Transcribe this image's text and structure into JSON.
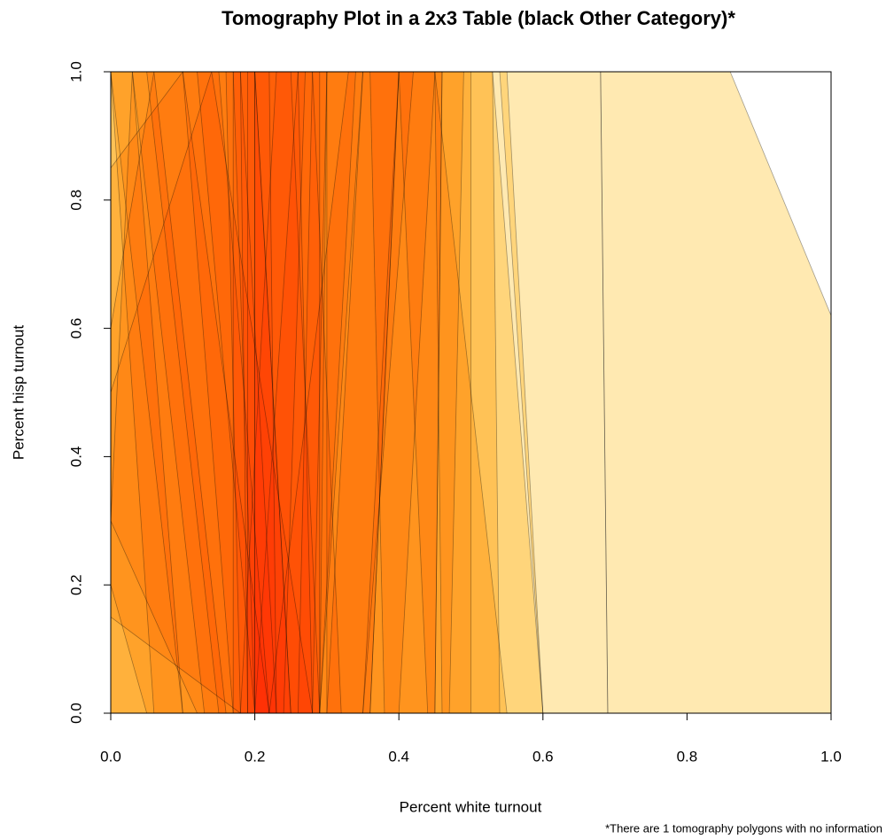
{
  "chart_data": {
    "type": "tomography",
    "title": "Tomography Plot in a 2x3 Table (black Other Category)*",
    "xlabel": "Percent white turnout",
    "ylabel": "Percent hisp turnout",
    "note": "*There are 1 tomography polygons with no information",
    "xlim": [
      0,
      1
    ],
    "ylim": [
      0,
      1
    ],
    "xticks": [
      {
        "value": 0,
        "label": "0.0"
      },
      {
        "value": 0.2,
        "label": "0.2"
      },
      {
        "value": 0.4,
        "label": "0.4"
      },
      {
        "value": 0.6,
        "label": "0.6"
      },
      {
        "value": 0.8,
        "label": "0.8"
      },
      {
        "value": 1,
        "label": "1.0"
      }
    ],
    "yticks": [
      {
        "value": 0,
        "label": "0.0"
      },
      {
        "value": 0.2,
        "label": "0.2"
      },
      {
        "value": 0.4,
        "label": "0.4"
      },
      {
        "value": 0.6,
        "label": "0.6"
      },
      {
        "value": 0.8,
        "label": "0.8"
      },
      {
        "value": 1,
        "label": "1.0"
      }
    ],
    "color": "#ffc83c",
    "polygons": [
      {
        "x": [
          0.68,
          0.86,
          1,
          1,
          0.69
        ],
        "y": [
          1,
          1,
          0.62,
          0,
          0
        ]
      },
      {
        "x": [
          0.54,
          0.68,
          0.69,
          0.6
        ],
        "y": [
          1,
          1,
          0,
          0
        ]
      },
      {
        "x": [
          0,
          0.55,
          0.6,
          0
        ],
        "y": [
          1,
          1,
          0,
          0
        ]
      },
      {
        "x": [
          0,
          0.45,
          0.55,
          0
        ],
        "y": [
          1,
          1,
          0,
          0
        ]
      },
      {
        "x": [
          0.45,
          0.53,
          0.6,
          0.46
        ],
        "y": [
          1,
          1,
          0,
          0
        ]
      },
      {
        "x": [
          0.4,
          0.53,
          0.54,
          0.44
        ],
        "y": [
          1,
          1,
          0,
          0
        ]
      },
      {
        "x": [
          0.36,
          0.5,
          0.5,
          0.38
        ],
        "y": [
          1,
          1,
          0,
          0
        ]
      },
      {
        "x": [
          0.3,
          0.46,
          0.45,
          0.3
        ],
        "y": [
          1,
          1,
          0,
          0
        ]
      },
      {
        "x": [
          0,
          0.2,
          0.25,
          0
        ],
        "y": [
          1,
          1,
          0,
          0
        ]
      },
      {
        "x": [
          0.17,
          0.34,
          0.29,
          0.2
        ],
        "y": [
          1,
          1,
          0,
          0
        ]
      },
      {
        "x": [
          0.17,
          0.3,
          0.29,
          0.17
        ],
        "y": [
          1,
          1,
          0,
          0
        ]
      },
      {
        "x": [
          0.2,
          0.4,
          0.36,
          0.2
        ],
        "y": [
          1,
          1,
          0,
          0
        ]
      },
      {
        "x": [
          0.26,
          0.35,
          0.29,
          0.2
        ],
        "y": [
          1,
          1,
          0,
          0
        ]
      },
      {
        "x": [
          0.1,
          0.3,
          0.28,
          0.17
        ],
        "y": [
          1,
          1,
          0,
          0
        ]
      },
      {
        "x": [
          0.23,
          0.42,
          0.35,
          0.18
        ],
        "y": [
          1,
          1,
          0,
          0
        ]
      },
      {
        "x": [
          0.05,
          0.25,
          0.29,
          0.15
        ],
        "y": [
          1,
          1,
          0,
          0
        ]
      },
      {
        "x": [
          0.33,
          0.45,
          0.4,
          0.22
        ],
        "y": [
          1,
          1,
          0,
          0
        ]
      },
      {
        "x": [
          0,
          0.2,
          0.25,
          0.1
        ],
        "y": [
          1,
          1,
          0,
          0
        ]
      },
      {
        "x": [
          0.12,
          0.28,
          0.32,
          0.2
        ],
        "y": [
          1,
          1,
          0,
          0
        ]
      },
      {
        "x": [
          0.35,
          0.46,
          0.45,
          0.3
        ],
        "y": [
          1,
          1,
          0,
          0
        ]
      },
      {
        "x": [
          0,
          0.15,
          0.22,
          0.06
        ],
        "y": [
          1,
          1,
          0,
          0
        ]
      },
      {
        "x": [
          0.03,
          0.18,
          0.23,
          0.13
        ],
        "y": [
          1,
          1,
          0,
          0
        ]
      },
      {
        "x": [
          0.19,
          0.27,
          0.24,
          0.19
        ],
        "y": [
          1,
          1,
          0,
          0
        ]
      },
      {
        "x": [
          0.16,
          0.22,
          0.23,
          0.18
        ],
        "y": [
          1,
          1,
          0,
          0
        ]
      },
      {
        "x": [
          0.28,
          0.4,
          0.36,
          0.26
        ],
        "y": [
          1,
          1,
          0,
          0
        ]
      },
      {
        "x": [
          0.4,
          0.49,
          0.47,
          0.35
        ],
        "y": [
          1,
          1,
          0,
          0
        ]
      },
      {
        "x": [
          0,
          0.1,
          0.22,
          0.12,
          0
        ],
        "y": [
          0.85,
          1,
          0,
          0,
          0.3
        ]
      },
      {
        "x": [
          0,
          0.06,
          0.16,
          0.05,
          0
        ],
        "y": [
          0.6,
          1,
          0,
          0,
          0.2
        ]
      },
      {
        "x": [
          0,
          0.03,
          0.1,
          0
        ],
        "y": [
          0.3,
          1,
          0,
          0
        ]
      },
      {
        "x": [
          0,
          0.14,
          0.28,
          0.18,
          0
        ],
        "y": [
          0.5,
          1,
          0,
          0,
          0.15
        ]
      },
      {
        "x": [
          0.2,
          0.29,
          0.29,
          0.2
        ],
        "y": [
          1,
          1,
          0,
          0
        ]
      },
      {
        "x": [
          0.18,
          0.26,
          0.28,
          0.19
        ],
        "y": [
          1,
          1,
          0,
          0
        ]
      }
    ]
  }
}
